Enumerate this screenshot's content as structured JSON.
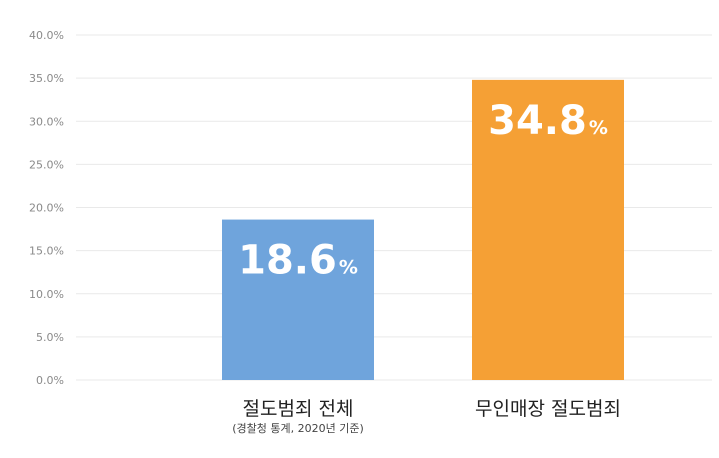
{
  "chart_data": {
    "type": "bar",
    "categories": [
      "절도범죄 전체",
      "무인매장 절도범죄"
    ],
    "values": [
      18.6,
      34.8
    ],
    "value_labels": [
      "18.6",
      "34.8"
    ],
    "value_suffix": "%",
    "bar_colors": [
      "#6fa4dc",
      "#f5a035"
    ],
    "ylim": [
      0,
      40
    ],
    "yticks": [
      "0.0%",
      "5.0%",
      "10.0%",
      "15.0%",
      "20.0%",
      "25.0%",
      "30.0%",
      "35.0%",
      "40.0%"
    ],
    "grid": true,
    "annotations": [
      "(경찰청 통계, 2020년 기준)"
    ]
  }
}
